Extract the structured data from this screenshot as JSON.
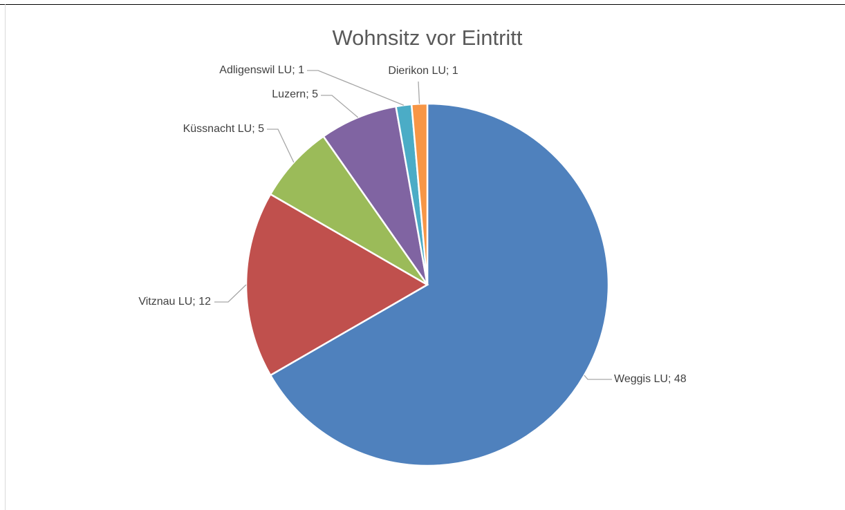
{
  "chart_data": {
    "type": "pie",
    "title": "Wohnsitz vor Eintritt",
    "values": [
      48,
      12,
      5,
      5,
      1,
      1
    ],
    "value_labels": [
      "Weggis LU; 48",
      "Vitznau LU; 12",
      "Küssnacht LU; 5",
      "Luzern; 5",
      "Adligenswil LU; 1",
      "Dierikon LU; 1"
    ],
    "colors": [
      "#4f81bd",
      "#c0504d",
      "#9bbb59",
      "#8064a2",
      "#4bacc6",
      "#f79646"
    ]
  }
}
